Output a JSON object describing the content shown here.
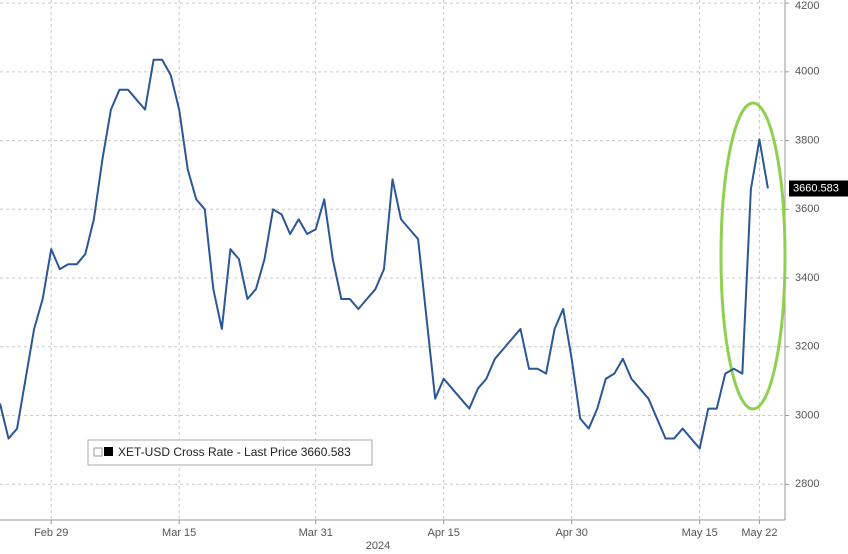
{
  "chart_data": {
    "type": "line",
    "x": [
      "2024-02-23",
      "2024-02-24",
      "2024-02-25",
      "2024-02-26",
      "2024-02-27",
      "2024-02-28",
      "2024-02-29",
      "2024-03-01",
      "2024-03-02",
      "2024-03-03",
      "2024-03-04",
      "2024-03-05",
      "2024-03-06",
      "2024-03-07",
      "2024-03-08",
      "2024-03-09",
      "2024-03-10",
      "2024-03-11",
      "2024-03-12",
      "2024-03-13",
      "2024-03-14",
      "2024-03-15",
      "2024-03-16",
      "2024-03-17",
      "2024-03-18",
      "2024-03-19",
      "2024-03-20",
      "2024-03-21",
      "2024-03-22",
      "2024-03-23",
      "2024-03-24",
      "2024-03-25",
      "2024-03-26",
      "2024-03-27",
      "2024-03-28",
      "2024-03-29",
      "2024-03-30",
      "2024-03-31",
      "2024-04-01",
      "2024-04-02",
      "2024-04-03",
      "2024-04-04",
      "2024-04-05",
      "2024-04-06",
      "2024-04-07",
      "2024-04-08",
      "2024-04-09",
      "2024-04-10",
      "2024-04-11",
      "2024-04-12",
      "2024-04-13",
      "2024-04-14",
      "2024-04-15",
      "2024-04-16",
      "2024-04-17",
      "2024-04-18",
      "2024-04-19",
      "2024-04-20",
      "2024-04-21",
      "2024-04-22",
      "2024-04-23",
      "2024-04-24",
      "2024-04-25",
      "2024-04-26",
      "2024-04-27",
      "2024-04-28",
      "2024-04-29",
      "2024-04-30",
      "2024-05-01",
      "2024-05-02",
      "2024-05-03",
      "2024-05-04",
      "2024-05-05",
      "2024-05-06",
      "2024-05-07",
      "2024-05-08",
      "2024-05-09",
      "2024-05-10",
      "2024-05-11",
      "2024-05-12",
      "2024-05-13",
      "2024-05-14",
      "2024-05-15",
      "2024-05-16",
      "2024-05-17",
      "2024-05-18",
      "2024-05-19",
      "2024-05-20",
      "2024-05-21",
      "2024-05-22",
      "2024-05-23"
    ],
    "series": [
      {
        "name": "XET-USD Cross Rate - Last Price 3660.583",
        "color": "#2b5797",
        "values": [
          3035,
          2933,
          2962,
          3107,
          3252,
          3339,
          3484,
          3426,
          3440,
          3440,
          3470,
          3571,
          3745,
          3890,
          3948,
          3948,
          3919,
          3890,
          4035,
          4035,
          3991,
          3890,
          3716,
          3629,
          3600,
          3368,
          3252,
          3484,
          3455,
          3339,
          3368,
          3455,
          3600,
          3585,
          3528,
          3571,
          3528,
          3542,
          3629,
          3455,
          3339,
          3339,
          3310,
          3339,
          3368,
          3426,
          3687,
          3571,
          3542,
          3513,
          3281,
          3049,
          3107,
          3078,
          3049,
          3020,
          3078,
          3107,
          3165,
          3194,
          3223,
          3252,
          3136,
          3136,
          3122,
          3252,
          3310,
          3165,
          2991,
          2962,
          3020,
          3107,
          3122,
          3165,
          3107,
          3078,
          3049,
          2991,
          2933,
          2933,
          2962,
          2933,
          2904,
          3020,
          3020,
          3122,
          3136,
          3122,
          3658,
          3803,
          3660.583
        ]
      }
    ],
    "last_price": 3660.583,
    "xlim": [
      "2024-02-23",
      "2024-05-25"
    ],
    "xticks": [
      {
        "value": "2024-02-29",
        "label": "Feb 29"
      },
      {
        "value": "2024-03-15",
        "label": "Mar 15"
      },
      {
        "value": "2024-03-31",
        "label": "Mar 31"
      },
      {
        "value": "2024-04-15",
        "label": "Apr 15"
      },
      {
        "value": "2024-04-30",
        "label": "Apr 30"
      },
      {
        "value": "2024-05-15",
        "label": "May 15"
      },
      {
        "value": "2024-05-22",
        "label": "May 22"
      }
    ],
    "xlabel": "2024",
    "ylim": [
      2696,
      4209
    ],
    "yticks": [
      2800,
      3000,
      3200,
      3400,
      3600,
      3800,
      4000,
      4200
    ],
    "grid": true
  }
}
